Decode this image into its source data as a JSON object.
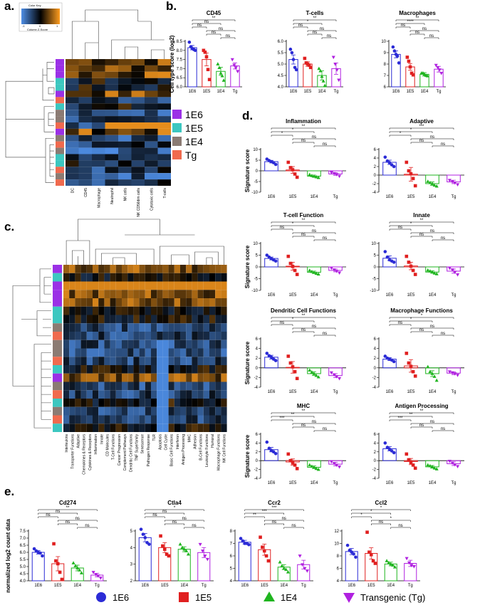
{
  "panel_letters": {
    "a": "a.",
    "b": "b.",
    "c": "c.",
    "d": "d.",
    "e": "e."
  },
  "group_colors": {
    "1E6": "#2b2bd6",
    "1E5": "#e02020",
    "1E4": "#1fb51f",
    "Tg": "#b020e0"
  },
  "side_colors": {
    "1E6": "#9b30e6",
    "1E5": "#3cc7c0",
    "1E4": "#8b7b73",
    "Tg": "#f06a4e"
  },
  "groups": [
    "1E6",
    "1E5",
    "1E4",
    "Tg"
  ],
  "panel_a": {
    "color_key_title": "Color Key",
    "color_key_sub": "Column Z-Score",
    "color_key_ticks": [
      "-1",
      "0",
      "1"
    ],
    "columns": [
      "DC",
      "CD45",
      "Macrophage",
      "Neutrophil",
      "NK cells",
      "NK CD56dim cells",
      "Cytotoxic cells",
      "T-cells"
    ],
    "row_groups": [
      "1E6",
      "1E6",
      "1E6",
      "1E5",
      "1E5",
      "1E6",
      "Tg",
      "1E5",
      "1E4",
      "1E4",
      "Tg",
      "1E6",
      "1E4",
      "Tg",
      "1E4",
      "1E5",
      "1E5",
      "Tg",
      "1E4",
      "Tg"
    ],
    "legend": [
      "1E6",
      "1E5",
      "1E4",
      "Tg"
    ]
  },
  "panel_c": {
    "columns": [
      "Interleukins",
      "Transporter Functions",
      "Adaptive",
      "Chemokines & Receptors",
      "Cytokines & Receptors",
      "Inflammation",
      "Innate",
      "CD Molecules",
      "T-Cell Functions",
      "Cancer Progression",
      "Complement Pathways",
      "Dendritic Cell Functions",
      "TNF Superfamily",
      "Senescence",
      "Pathogen Response",
      "TLR",
      "Apoptosis",
      "Cell Cycle",
      "Basic Cell Functions",
      "Interferon",
      "Antigen Processing",
      "MHC",
      "Adhesion",
      "B-Cell Functions",
      "Leukocyte Functions",
      "Humoral",
      "Macrophage Functions",
      "NK Cell Functions"
    ],
    "row_groups": [
      "1E6",
      "1E5",
      "1E6",
      "1E6",
      "1E6",
      "1E5",
      "1E5",
      "1E4",
      "Tg",
      "1E4",
      "1E4",
      "Tg",
      "1E5",
      "1E6",
      "1E4",
      "Tg",
      "1E5",
      "1E4",
      "Tg",
      "1E5"
    ]
  },
  "chart_data": [
    {
      "type": "bar",
      "title": "CD45",
      "ylabel": "Cell type score (log2)",
      "categories": [
        "1E6",
        "1E5",
        "1E4",
        "Tg"
      ],
      "ylim": [
        6.0,
        8.5
      ],
      "yticks": [
        "6.0",
        "6.5",
        "7.0",
        "7.5",
        "8.0",
        "8.5"
      ],
      "values": [
        8.15,
        7.5,
        6.85,
        7.15
      ],
      "errors": [
        0.12,
        0.35,
        0.22,
        0.17
      ],
      "points": [
        [
          8.45,
          8.2,
          8.1,
          8.05,
          8.0
        ],
        [
          8.0,
          7.9,
          7.65,
          6.95,
          6.4
        ],
        [
          7.25,
          7.05,
          6.75,
          6.6,
          6.35
        ],
        [
          7.5,
          7.2,
          7.05,
          6.85
        ]
      ],
      "sig": [
        "ns",
        "ns",
        "ns",
        "ns",
        "ns",
        "**"
      ]
    },
    {
      "type": "bar",
      "title": "T-cells",
      "ylabel": "",
      "categories": [
        "1E6",
        "1E5",
        "1E4",
        "Tg"
      ],
      "ylim": [
        4.0,
        6.0
      ],
      "yticks": [
        "4.0",
        "4.5",
        "5.0",
        "5.5",
        "6.0"
      ],
      "values": [
        5.2,
        5.0,
        4.5,
        4.8
      ],
      "errors": [
        0.2,
        0.1,
        0.2,
        0.25
      ],
      "points": [
        [
          5.65,
          5.5,
          5.2,
          4.85,
          4.75
        ],
        [
          5.25,
          5.05,
          5.0,
          4.95,
          4.85
        ],
        [
          4.8,
          4.7,
          4.45,
          4.25,
          4.05
        ],
        [
          5.3,
          5.0,
          4.75,
          4.3
        ]
      ],
      "sig": [
        "ns",
        "ns",
        "ns",
        "ns",
        "*",
        "**"
      ]
    },
    {
      "type": "bar",
      "title": "Macrophages",
      "ylabel": "",
      "categories": [
        "1E6",
        "1E5",
        "1E4",
        "Tg"
      ],
      "ylim": [
        6,
        10
      ],
      "yticks": [
        "6",
        "7",
        "8",
        "9",
        "10"
      ],
      "values": [
        8.85,
        7.75,
        7.1,
        7.55
      ],
      "errors": [
        0.3,
        0.3,
        0.15,
        0.25
      ],
      "points": [
        [
          9.5,
          9.15,
          8.85,
          8.7,
          8.1
        ],
        [
          8.6,
          8.25,
          7.75,
          7.2,
          7.05
        ],
        [
          7.2,
          7.2,
          7.1,
          7.0,
          6.95
        ],
        [
          7.9,
          7.7,
          7.5,
          7.2
        ]
      ],
      "sig": [
        "ns",
        "ns",
        "ns",
        "ns",
        "****",
        "**"
      ]
    },
    {
      "type": "bar",
      "title": "Inflammation",
      "ylabel": "Signature score",
      "categories": [
        "1E6",
        "1E5",
        "1E4",
        "Tg"
      ],
      "ylim": [
        -10,
        10
      ],
      "yticks": [
        "-10",
        "-5",
        "0",
        "5",
        "10"
      ],
      "values": [
        4.3,
        0.4,
        -2.5,
        -1.5
      ],
      "errors": [
        0.6,
        1.6,
        0.5,
        0.6
      ],
      "points": [
        [
          5.5,
          4.8,
          4.3,
          3.8,
          3.0
        ],
        [
          4.0,
          1.5,
          0.5,
          -1.5,
          -3.0
        ],
        [
          -1.8,
          -2.3,
          -2.6,
          -2.9,
          -3.2
        ],
        [
          -0.8,
          -1.2,
          -1.7,
          -2.5
        ]
      ],
      "sig": [
        "ns",
        "ns",
        "ns",
        "*",
        "*",
        "**"
      ]
    },
    {
      "type": "bar",
      "title": "Adaptive",
      "ylabel": "",
      "categories": [
        "1E6",
        "1E5",
        "1E4",
        "Tg"
      ],
      "ylim": [
        -4,
        6
      ],
      "yticks": [
        "-4",
        "-2",
        "0",
        "2",
        "4",
        "6"
      ],
      "values": [
        3.0,
        0.2,
        -2.0,
        -1.6
      ],
      "errors": [
        0.5,
        1.6,
        0.4,
        0.4
      ],
      "points": [
        [
          4.2,
          3.3,
          2.9,
          2.4,
          2.0
        ],
        [
          3.0,
          1.0,
          0.3,
          -0.8,
          -2.5
        ],
        [
          -1.5,
          -1.8,
          -2.0,
          -2.4,
          -2.6
        ],
        [
          -1.2,
          -1.5,
          -1.8,
          -2.2
        ]
      ],
      "sig": [
        "ns",
        "ns",
        "ns",
        "*",
        "*",
        "***"
      ]
    },
    {
      "type": "bar",
      "title": "T-cell Function",
      "ylabel": "Signature score",
      "categories": [
        "1E6",
        "1E5",
        "1E4",
        "Tg"
      ],
      "ylim": [
        -10,
        10
      ],
      "yticks": [
        "-10",
        "-5",
        "0",
        "5",
        "10"
      ],
      "values": [
        3.6,
        0.3,
        -2.3,
        -1.5
      ],
      "errors": [
        0.6,
        1.7,
        0.5,
        0.6
      ],
      "points": [
        [
          5.0,
          4.2,
          3.5,
          3.0,
          2.5
        ],
        [
          4.5,
          1.5,
          0.2,
          -1.5,
          -3.2
        ],
        [
          -1.5,
          -2.0,
          -2.4,
          -2.8,
          -3.1
        ],
        [
          -0.5,
          -1.2,
          -1.8,
          -2.5
        ]
      ],
      "sig": [
        "ns",
        "ns",
        "ns",
        "ns",
        "*",
        "**"
      ]
    },
    {
      "type": "bar",
      "title": "Innate",
      "ylabel": "",
      "categories": [
        "1E6",
        "1E5",
        "1E4",
        "Tg"
      ],
      "ylim": [
        -10,
        10
      ],
      "yticks": [
        "-10",
        "-5",
        "0",
        "5",
        "10"
      ],
      "values": [
        3.7,
        0.4,
        -2.2,
        -1.8
      ],
      "errors": [
        1.0,
        1.6,
        0.5,
        0.9
      ],
      "points": [
        [
          6.5,
          4.2,
          3.0,
          2.5,
          2.0
        ],
        [
          4.5,
          2.0,
          0.3,
          -1.5,
          -3.2
        ],
        [
          -1.4,
          -1.8,
          -2.2,
          -2.7,
          -3.0
        ],
        [
          -0.5,
          -1.2,
          -2.2,
          -3.3
        ]
      ],
      "sig": [
        "ns",
        "ns",
        "ns",
        "ns",
        "*",
        "**"
      ]
    },
    {
      "type": "bar",
      "title": "Dendritic Cell Functions",
      "ylabel": "Signature score",
      "categories": [
        "1E6",
        "1E5",
        "1E4",
        "Tg"
      ],
      "ylim": [
        -4,
        6
      ],
      "yticks": [
        "-4",
        "-2",
        "0",
        "2",
        "4",
        "6"
      ],
      "values": [
        2.2,
        0.1,
        -1.2,
        -1.6
      ],
      "errors": [
        0.4,
        1.2,
        0.4,
        0.4
      ],
      "points": [
        [
          3.0,
          2.5,
          2.2,
          1.8,
          1.5
        ],
        [
          2.4,
          1.0,
          0.2,
          -0.8,
          -2.2
        ],
        [
          -0.5,
          -0.9,
          -1.2,
          -1.6,
          -1.9
        ],
        [
          -1.0,
          -1.4,
          -1.8,
          -2.2
        ]
      ],
      "sig": [
        "ns",
        "ns",
        "ns",
        "ns",
        "*",
        "**"
      ]
    },
    {
      "type": "bar",
      "title": "Macrophage Functions",
      "ylabel": "",
      "categories": [
        "1E6",
        "1E5",
        "1E4",
        "Tg"
      ],
      "ylim": [
        -4,
        6
      ],
      "yticks": [
        "-4",
        "-2",
        "0",
        "2",
        "4",
        "6"
      ],
      "values": [
        1.8,
        0.4,
        -1.2,
        -1.1
      ],
      "errors": [
        0.3,
        1.3,
        0.6,
        0.3
      ],
      "points": [
        [
          2.4,
          2.0,
          1.8,
          1.6,
          1.3
        ],
        [
          3.0,
          1.0,
          0.3,
          -0.8,
          -1.7
        ],
        [
          0.2,
          -0.8,
          -1.2,
          -1.8,
          -2.6
        ],
        [
          -0.8,
          -1.0,
          -1.2,
          -1.5
        ]
      ],
      "sig": [
        "ns",
        "ns",
        "ns",
        "ns",
        "*",
        "*"
      ]
    },
    {
      "type": "bar",
      "title": "MHC",
      "ylabel": "Signature score",
      "categories": [
        "1E6",
        "1E5",
        "1E4",
        "Tg"
      ],
      "ylim": [
        -4,
        6
      ],
      "yticks": [
        "-4",
        "-2",
        "0",
        "2",
        "4",
        "6"
      ],
      "values": [
        2.5,
        -0.3,
        -1.5,
        -0.8
      ],
      "errors": [
        0.5,
        0.7,
        0.3,
        0.4
      ],
      "points": [
        [
          4.2,
          2.8,
          2.3,
          2.0,
          1.6
        ],
        [
          1.5,
          0.0,
          -0.5,
          -1.0,
          -1.8
        ],
        [
          -1.0,
          -1.3,
          -1.5,
          -1.8,
          -2.0
        ],
        [
          -0.2,
          -0.6,
          -1.0,
          -1.4
        ]
      ],
      "sig": [
        "ns",
        "ns",
        "ns",
        "***",
        "**",
        "**"
      ]
    },
    {
      "type": "bar",
      "title": "Antigen Processing",
      "ylabel": "",
      "categories": [
        "1E6",
        "1E5",
        "1E4",
        "Tg"
      ],
      "ylim": [
        -4,
        6
      ],
      "yticks": [
        "-4",
        "-2",
        "0",
        "2",
        "4",
        "6"
      ],
      "values": [
        2.7,
        -0.2,
        -1.4,
        -0.7
      ],
      "errors": [
        0.5,
        0.7,
        0.3,
        0.4
      ],
      "points": [
        [
          4.0,
          3.0,
          2.6,
          2.2,
          1.8
        ],
        [
          1.5,
          0.2,
          -0.4,
          -1.0,
          -1.7
        ],
        [
          -1.0,
          -1.2,
          -1.4,
          -1.7,
          -1.9
        ],
        [
          -0.1,
          -0.5,
          -0.9,
          -1.3
        ]
      ],
      "sig": [
        "ns",
        "ns",
        "ns",
        "***",
        "**",
        "**"
      ]
    },
    {
      "type": "bar",
      "title": "Cd274",
      "ylabel": "normalized log2 count data",
      "categories": [
        "1E6",
        "1E5",
        "1E4",
        "Tg"
      ],
      "ylim": [
        4.0,
        7.5
      ],
      "yticks": [
        "4.0",
        "4.5",
        "5.0",
        "5.5",
        "6.0",
        "6.5",
        "7.0",
        "7.5"
      ],
      "values": [
        6.0,
        5.2,
        4.9,
        4.4
      ],
      "errors": [
        0.12,
        0.5,
        0.2,
        0.12
      ],
      "points": [
        [
          6.25,
          6.1,
          6.0,
          5.95,
          5.75
        ],
        [
          6.6,
          5.4,
          5.2,
          4.6,
          4.1
        ],
        [
          5.25,
          5.05,
          4.9,
          4.75,
          4.55
        ],
        [
          4.6,
          4.45,
          4.35,
          4.2
        ]
      ],
      "sig": [
        "ns",
        "ns",
        "ns",
        "ns",
        "ns",
        "**"
      ]
    },
    {
      "type": "bar",
      "title": "Ctla4",
      "ylabel": "",
      "categories": [
        "1E6",
        "1E5",
        "1E4",
        "Tg"
      ],
      "ylim": [
        2,
        5
      ],
      "yticks": [
        "2",
        "3",
        "4",
        "5"
      ],
      "values": [
        4.6,
        4.0,
        3.9,
        3.7
      ],
      "errors": [
        0.25,
        0.3,
        0.15,
        0.3
      ],
      "points": [
        [
          5.1,
          4.8,
          4.6,
          4.3,
          4.2
        ],
        [
          4.7,
          4.1,
          3.9,
          3.6,
          3.5
        ],
        [
          4.2,
          4.0,
          3.9,
          3.8,
          3.6
        ],
        [
          4.2,
          3.8,
          3.5,
          3.3
        ]
      ],
      "sig": [
        "ns",
        "ns",
        "ns",
        "ns",
        "ns",
        "*"
      ]
    },
    {
      "type": "bar",
      "title": "Ccr2",
      "ylabel": "",
      "categories": [
        "1E6",
        "1E5",
        "1E4",
        "Tg"
      ],
      "ylim": [
        4,
        8
      ],
      "yticks": [
        "4",
        "5",
        "6",
        "7",
        "8"
      ],
      "values": [
        7.1,
        6.5,
        5.1,
        5.3
      ],
      "errors": [
        0.15,
        0.45,
        0.2,
        0.35
      ],
      "points": [
        [
          7.4,
          7.2,
          7.0,
          7.0,
          6.9
        ],
        [
          7.5,
          6.7,
          6.4,
          6.0,
          5.6
        ],
        [
          5.5,
          5.2,
          5.0,
          4.9,
          4.7
        ],
        [
          6.0,
          5.3,
          5.0,
          4.8
        ]
      ],
      "sig": [
        "ns",
        "ns",
        "ns",
        "**",
        "***",
        "***"
      ]
    },
    {
      "type": "bar",
      "title": "Ccl2",
      "ylabel": "",
      "categories": [
        "1E6",
        "1E5",
        "1E4",
        "Tg"
      ],
      "ylim": [
        4,
        12
      ],
      "yticks": [
        "4",
        "6",
        "8",
        "10",
        "12"
      ],
      "values": [
        8.7,
        8.4,
        6.7,
        6.8
      ],
      "errors": [
        0.5,
        0.9,
        0.3,
        0.5
      ],
      "points": [
        [
          9.7,
          8.9,
          8.6,
          8.3,
          7.8
        ],
        [
          11.8,
          8.6,
          8.2,
          7.2,
          6.8
        ],
        [
          7.2,
          6.9,
          6.7,
          6.5,
          6.2
        ],
        [
          7.6,
          6.9,
          6.5,
          6.3
        ]
      ],
      "sig": [
        "ns",
        "ns",
        "*",
        "*",
        "*",
        "*"
      ]
    }
  ],
  "legend_e": [
    {
      "label": "1E6",
      "shape": "circle"
    },
    {
      "label": "1E5",
      "shape": "square"
    },
    {
      "label": "1E4",
      "shape": "triangle"
    },
    {
      "label": "Transgenic (Tg)",
      "shape": "invtriangle"
    }
  ]
}
